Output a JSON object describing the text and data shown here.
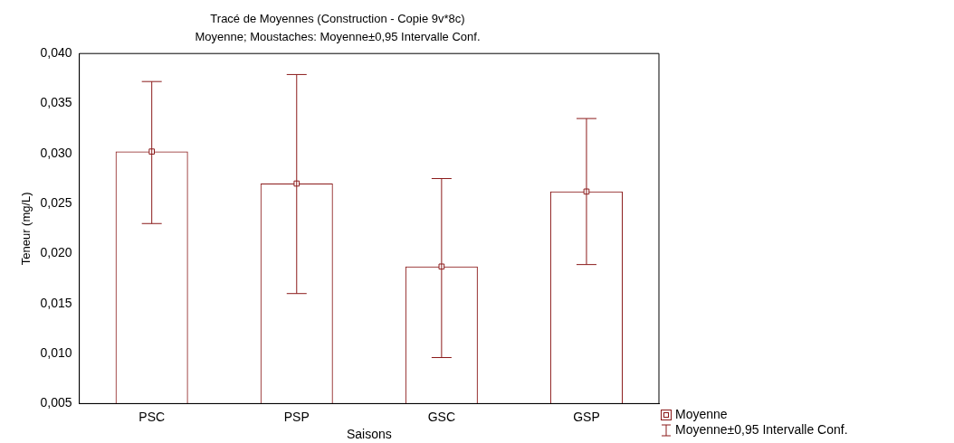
{
  "chart_data": {
    "type": "bar",
    "title": "Tracé de Moyennes (Construction - Copie 9v*8c)",
    "subtitle": "Moyenne; Moustaches: Moyenne±0,95 Intervalle Conf.",
    "xlabel": "Saisons",
    "ylabel": "Teneur (mg/L)",
    "categories": [
      "PSC",
      "PSP",
      "GSC",
      "GSP"
    ],
    "series": [
      {
        "color": "#8b1a1a",
        "values": [
          0.0302,
          0.027,
          0.0187,
          0.0262
        ],
        "errors": [
          [
            0.023,
            0.0372
          ],
          [
            0.016,
            0.0379
          ],
          [
            0.0096,
            0.0275
          ],
          [
            0.0189,
            0.0335
          ]
        ]
      },
      {
        "type": "scatter",
        "name": "Moyenne",
        "color": "#8b1a1a",
        "x": [
          "PSC",
          "PSP",
          "GSC",
          "GSP"
        ],
        "values": [
          0.0302,
          0.027,
          0.0187,
          0.0262
        ]
      }
    ],
    "ylim": [
      0.005,
      0.04
    ],
    "yticks": [
      {
        "value": 0.005,
        "label": "0,005"
      },
      {
        "value": 0.01,
        "label": "0,010"
      },
      {
        "value": 0.015,
        "label": "0,015"
      },
      {
        "value": 0.02,
        "label": "0,020"
      },
      {
        "value": 0.025,
        "label": "0,025"
      },
      {
        "value": 0.03,
        "label": "0,030"
      },
      {
        "value": 0.035,
        "label": "0,035"
      },
      {
        "value": 0.04,
        "label": "0,040"
      }
    ],
    "annotations": [
      "Moyenne±0,95 Intervalle Conf."
    ],
    "marker": "square",
    "legend": "bottom right",
    "grid": false
  }
}
